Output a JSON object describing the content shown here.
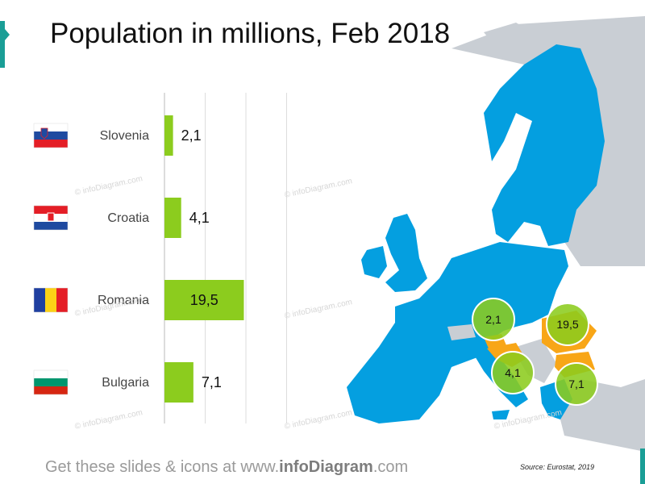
{
  "title": "Population in millions, Feb 2018",
  "footer": {
    "prefix": "Get these slides & icons at www.",
    "brand": "infoDiagram",
    "suffix": ".com"
  },
  "source": "Source: Eurostat, 2019",
  "watermark": "© infoDiagram.com",
  "colors": {
    "bar": "#8ccc1e",
    "eu_blue": "#049fe0",
    "highlight_orange": "#f8a617",
    "non_eu_gray": "#c9ced4",
    "bubble_green": "#8ccc1e",
    "accent": "#1a9e96"
  },
  "chart_data": {
    "type": "bar",
    "orientation": "horizontal",
    "title": "Population in millions, Feb 2018",
    "categories": [
      "Slovenia",
      "Croatia",
      "Romania",
      "Bulgaria"
    ],
    "values": [
      2.1,
      4.1,
      19.5,
      7.1
    ],
    "value_labels": [
      "2,1",
      "4,1",
      "19,5",
      "7,1"
    ],
    "flags": [
      "slovenia-flag",
      "croatia-flag",
      "romania-flag",
      "bulgaria-flag"
    ],
    "xlim": [
      0,
      30
    ],
    "grid": true
  },
  "map": {
    "description_icons": "europe-map",
    "bubbles": [
      {
        "country": "Slovenia",
        "label": "2,1"
      },
      {
        "country": "Romania",
        "label": "19,5"
      },
      {
        "country": "Croatia",
        "label": "4,1"
      },
      {
        "country": "Bulgaria",
        "label": "7,1"
      }
    ]
  }
}
